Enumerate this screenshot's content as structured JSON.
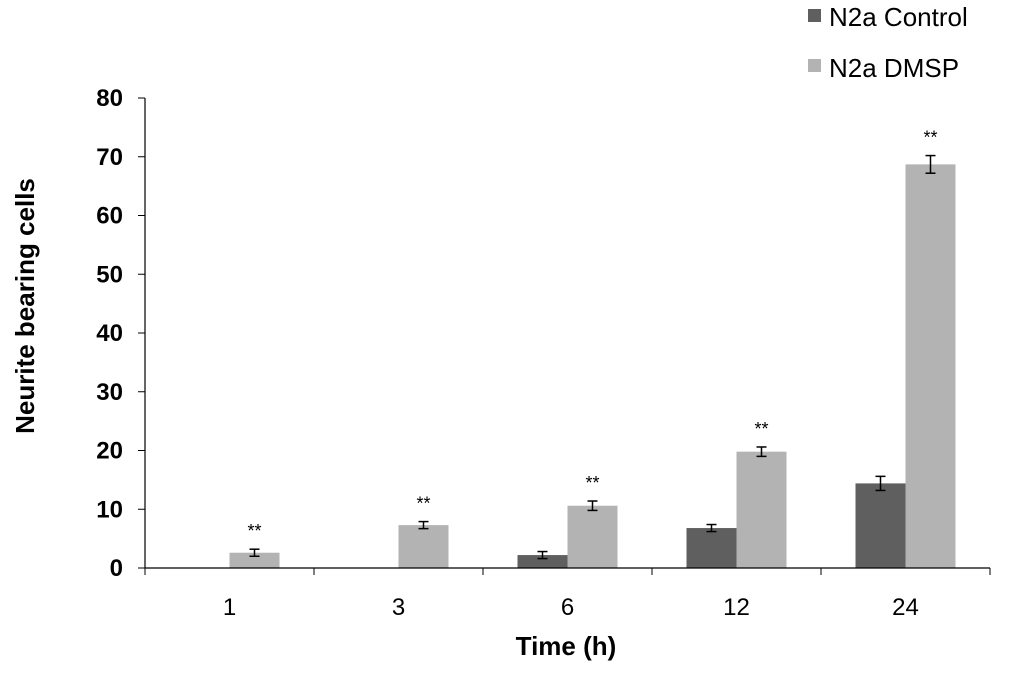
{
  "chart_data": {
    "type": "bar",
    "title": "",
    "xlabel": "Time (h)",
    "ylabel": "Neurite bearing cells",
    "categories": [
      "1",
      "3",
      "6",
      "12",
      "24"
    ],
    "ylim": [
      0,
      80
    ],
    "yticks": [
      0,
      10,
      20,
      30,
      40,
      50,
      60,
      70,
      80
    ],
    "grid": false,
    "legend_position": "top-right",
    "series": [
      {
        "name": "N2a Control",
        "color": "#5f5f5f",
        "values": [
          0,
          0,
          2.2,
          6.8,
          14.4
        ],
        "errors": [
          0,
          0,
          0.6,
          0.6,
          1.2
        ],
        "annotations": [
          "",
          "",
          "",
          "",
          ""
        ]
      },
      {
        "name": "N2a DMSP",
        "color": "#b3b3b3",
        "values": [
          2.6,
          7.3,
          10.6,
          19.8,
          68.7
        ],
        "errors": [
          0.6,
          0.6,
          0.8,
          0.8,
          1.5
        ],
        "annotations": [
          "**",
          "**",
          "**",
          "**",
          "**"
        ]
      }
    ]
  }
}
